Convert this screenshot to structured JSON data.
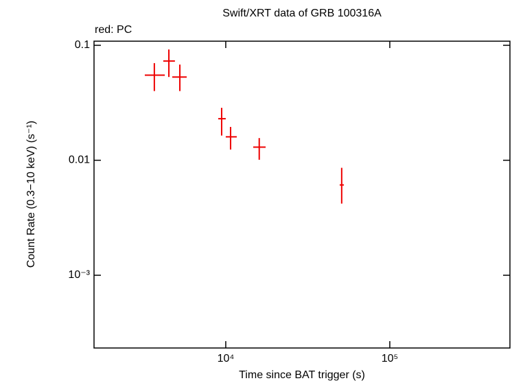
{
  "chart_data": {
    "type": "errorbar",
    "title": "Swift/XRT data of GRB 100316A",
    "subtitle": "red: PC",
    "x_label": "Time since BAT trigger (s)",
    "y_label": "Count Rate (0.3−10 keV) (s⁻¹)",
    "log_x": true,
    "log_y": true,
    "grid": false,
    "xlim": [
      1574,
      540000
    ],
    "ylim": [
      0.000233,
      0.1086
    ],
    "xticks": [
      {
        "value": 10000,
        "label": "10⁴"
      },
      {
        "value": 100000,
        "label": "10⁵"
      }
    ],
    "yticks": [
      0.1,
      0.01,
      {
        "value": 0.001,
        "label": "10⁻³"
      }
    ],
    "series": [
      {
        "name": "PC",
        "color": "#ee0000",
        "x": [
          3670,
          4500,
          5250,
          9440,
          10700,
          16000,
          50900
        ],
        "xerr_minus": [
          460,
          340,
          530,
          440,
          700,
          1300,
          1400
        ],
        "xerr_plus": [
          580,
          400,
          530,
          560,
          970,
          1500,
          1600
        ],
        "values": [
          0.055,
          0.073,
          0.053,
          0.023,
          0.016,
          0.013,
          0.0061
        ],
        "yerr_minus": [
          0.015,
          0.02,
          0.013,
          0.0066,
          0.0036,
          0.0029,
          0.0019
        ],
        "yerr_plus": [
          0.015,
          0.019,
          0.015,
          0.0056,
          0.0035,
          0.0026,
          0.0025
        ]
      }
    ]
  }
}
